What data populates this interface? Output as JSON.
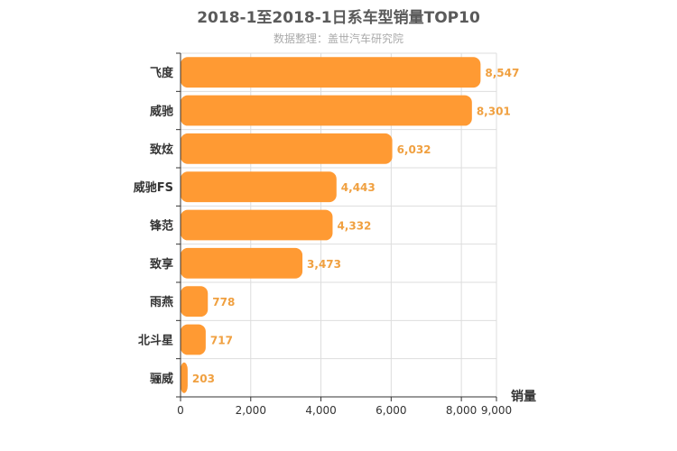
{
  "chart_data": {
    "type": "bar",
    "orientation": "horizontal",
    "title": "2018-1至2018-1日系车型销量TOP10",
    "subtitle": "数据整理：盖世汽车研究院",
    "xlabel": "销量",
    "ylabel": "",
    "categories": [
      "飞度",
      "威驰",
      "致炫",
      "威驰FS",
      "锋范",
      "致享",
      "雨燕",
      "北斗星",
      "骊威"
    ],
    "values": [
      8547,
      8301,
      6032,
      4443,
      4332,
      3473,
      778,
      717,
      203
    ],
    "value_labels": [
      "8,547",
      "8,301",
      "6,032",
      "4,443",
      "4,332",
      "3,473",
      "778",
      "717",
      "203"
    ],
    "xlim": [
      0,
      9000
    ],
    "ticks": [
      0,
      2000,
      4000,
      6000,
      8000,
      9000
    ],
    "tick_labels": [
      "0",
      "2,000",
      "4,000",
      "6,000",
      "8,000",
      "9,000"
    ],
    "grid": true,
    "bar_color": "#ff9a33",
    "value_label_color": "#f0a040"
  }
}
